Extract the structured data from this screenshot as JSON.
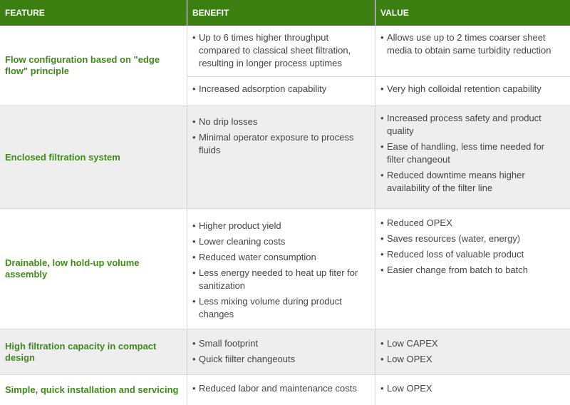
{
  "header": {
    "feature": "FEATURE",
    "benefit": "BENEFIT",
    "value": "VALUE"
  },
  "rows": [
    {
      "feature": "Flow configuration based on \"edge flow\" principle",
      "sub": [
        {
          "benefit": [
            "Up to 6 times higher throughput compared to classical sheet filtration, resulting in longer process uptimes"
          ],
          "value": [
            "Allows use up to 2 times coarser sheet media to obtain same turbidity reduction"
          ]
        },
        {
          "benefit": [
            "Increased adsorption capability"
          ],
          "value": [
            "Very high colloidal retention capability"
          ]
        }
      ]
    },
    {
      "feature": "Enclosed filtration system",
      "benefit": [
        "No drip losses",
        "Minimal operator exposure to process fluids"
      ],
      "value": [
        "Increased process safety and product quality",
        "Ease of handling, less time needed for filter changeout",
        "Reduced downtime means higher availability of the filter line"
      ]
    },
    {
      "feature": "Drainable, low hold-up volume assembly",
      "benefit": [
        "Higher product yield",
        "Lower cleaning costs",
        "Reduced water consumption",
        "Less energy needed to heat up fiter for sanitization",
        "Less mixing volume during product changes"
      ],
      "value": [
        "Reduced OPEX",
        "Saves resources (water, energy)",
        "Reduced loss of valuable product",
        "Easier change from batch to batch"
      ]
    },
    {
      "feature": "High filtration capacity in compact design",
      "benefit": [
        "Small footprint",
        "Quick fiilter changeouts"
      ],
      "value": [
        "Low CAPEX",
        "Low OPEX"
      ]
    },
    {
      "feature": "Simple, quick installation and servicing",
      "benefit": [
        "Reduced labor and maintenance costs"
      ],
      "value": [
        "Low OPEX"
      ]
    }
  ]
}
